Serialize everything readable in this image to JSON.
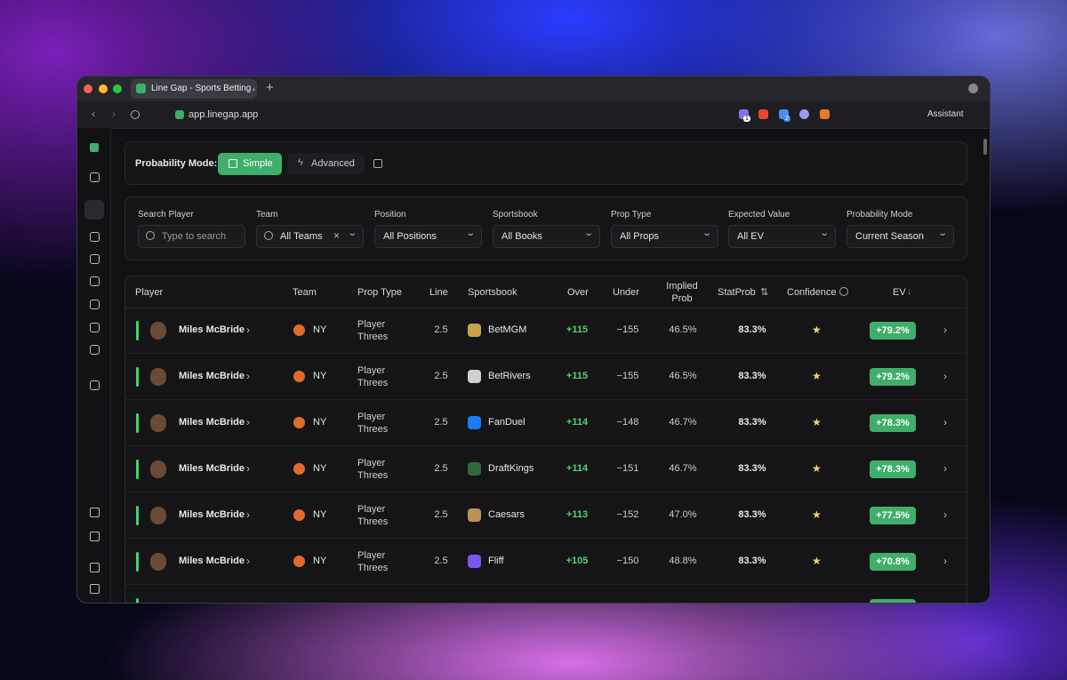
{
  "browser": {
    "tab_title": "Line Gap - Sports Betting A",
    "url": "app.linegap.app",
    "badges": [
      "1",
      "2"
    ],
    "assistant": "Assistant"
  },
  "mode_bar": {
    "label": "Probability Mode:",
    "simple": "Simple",
    "advanced": "Advanced"
  },
  "filters": [
    {
      "label": "Search Player",
      "value": "Type to search"
    },
    {
      "label": "Team",
      "value": "All Teams"
    },
    {
      "label": "Position",
      "value": "All Positions"
    },
    {
      "label": "Sportsbook",
      "value": "All Books"
    },
    {
      "label": "Prop Type",
      "value": "All Props"
    },
    {
      "label": "Expected Value",
      "value": "All EV"
    },
    {
      "label": "Probability Mode",
      "value": "Current Season"
    }
  ],
  "table": {
    "columns": [
      "Player",
      "Team",
      "Prop Type",
      "Line",
      "Sportsbook",
      "Over",
      "Under",
      "Implied Prob",
      "StatProb",
      "Confidence",
      "EV"
    ],
    "rows": [
      {
        "player": "Miles McBride",
        "team": "NY",
        "prop_type": "Player Threes",
        "line": "2.5",
        "sportsbook": "BetMGM",
        "over": "+115",
        "under": "−155",
        "implied_prob": "46.5%",
        "stat_prob": "83.3%",
        "ev": "+79.2%"
      },
      {
        "player": "Miles McBride",
        "team": "NY",
        "prop_type": "Player Threes",
        "line": "2.5",
        "sportsbook": "BetRivers",
        "over": "+115",
        "under": "−155",
        "implied_prob": "46.5%",
        "stat_prob": "83.3%",
        "ev": "+79.2%"
      },
      {
        "player": "Miles McBride",
        "team": "NY",
        "prop_type": "Player Threes",
        "line": "2.5",
        "sportsbook": "FanDuel",
        "over": "+114",
        "under": "−148",
        "implied_prob": "46.7%",
        "stat_prob": "83.3%",
        "ev": "+78.3%"
      },
      {
        "player": "Miles McBride",
        "team": "NY",
        "prop_type": "Player Threes",
        "line": "2.5",
        "sportsbook": "DraftKings",
        "over": "+114",
        "under": "−151",
        "implied_prob": "46.7%",
        "stat_prob": "83.3%",
        "ev": "+78.3%"
      },
      {
        "player": "Miles McBride",
        "team": "NY",
        "prop_type": "Player Threes",
        "line": "2.5",
        "sportsbook": "Caesars",
        "over": "+113",
        "under": "−152",
        "implied_prob": "47.0%",
        "stat_prob": "83.3%",
        "ev": "+77.5%"
      },
      {
        "player": "Miles McBride",
        "team": "NY",
        "prop_type": "Player Threes",
        "line": "2.5",
        "sportsbook": "Fliff",
        "over": "+105",
        "under": "−150",
        "implied_prob": "48.8%",
        "stat_prob": "83.3%",
        "ev": "+70.8%"
      }
    ]
  }
}
